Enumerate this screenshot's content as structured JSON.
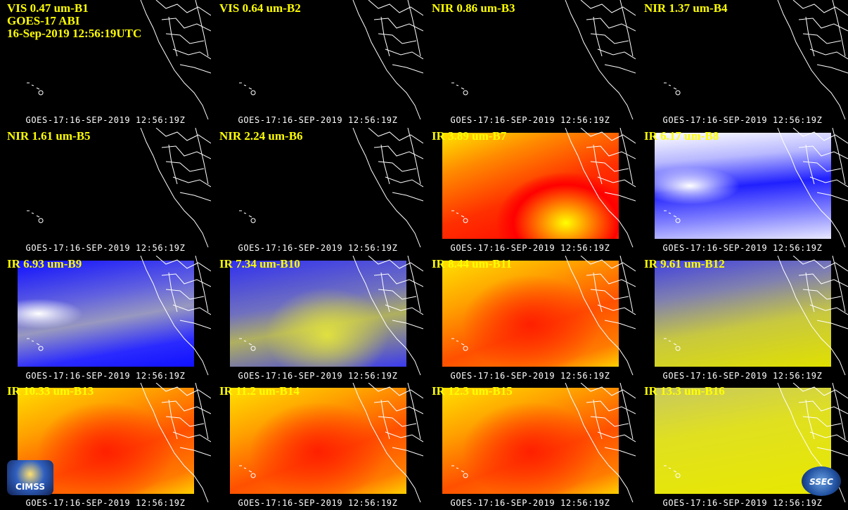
{
  "header": {
    "lines": [
      "GOES-17 ABI",
      "16-Sep-2019 12:56:19UTC"
    ]
  },
  "panels": [
    {
      "label": "VIS 0.47 um-B1",
      "footer": "GOES-17:16-SEP-2019 12:56:19Z"
    },
    {
      "label": "VIS 0.64 um-B2",
      "footer": "GOES-17:16-SEP-2019 12:56:19Z"
    },
    {
      "label": "NIR 0.86 um-B3",
      "footer": "GOES-17:16-SEP-2019 12:56:19Z"
    },
    {
      "label": "NIR 1.37 um-B4",
      "footer": "GOES-17:16-SEP-2019 12:56:19Z"
    },
    {
      "label": "NIR 1.61 um-B5",
      "footer": "GOES-17:16-SEP-2019 12:56:19Z"
    },
    {
      "label": "NIR 2.24 um-B6",
      "footer": "GOES-17:16-SEP-2019 12:56:19Z"
    },
    {
      "label": "IR 3.89 um-B7",
      "footer": "GOES-17:16-SEP-2019 12:56:19Z"
    },
    {
      "label": "IR 6.17 um-B8",
      "footer": "GOES-17:16-SEP-2019 12:56:19Z"
    },
    {
      "label": "IR 6.93 um-B9",
      "footer": "GOES-17:16-SEP-2019 12:56:19Z"
    },
    {
      "label": "IR 7.34 um-B10",
      "footer": "GOES-17:16-SEP-2019 12:56:19Z"
    },
    {
      "label": "IR 8.44 um-B11",
      "footer": "GOES-17:16-SEP-2019 12:56:19Z"
    },
    {
      "label": "IR 9.61 um-B12",
      "footer": "GOES-17:16-SEP-2019 12:56:19Z"
    },
    {
      "label": "IR 10.33 um-B13",
      "footer": "GOES-17:16-SEP-2019 12:56:19Z"
    },
    {
      "label": "IR 11.2 um-B14",
      "footer": "GOES-17:16-SEP-2019 12:56:19Z"
    },
    {
      "label": "IR 12.3 um-B15",
      "footer": "GOES-17:16-SEP-2019 12:56:19Z"
    },
    {
      "label": "IR 13.3 um-B16",
      "footer": "GOES-17:16-SEP-2019 12:56:19Z"
    }
  ],
  "logos": {
    "left": "CIMSS",
    "right": "SSEC"
  }
}
